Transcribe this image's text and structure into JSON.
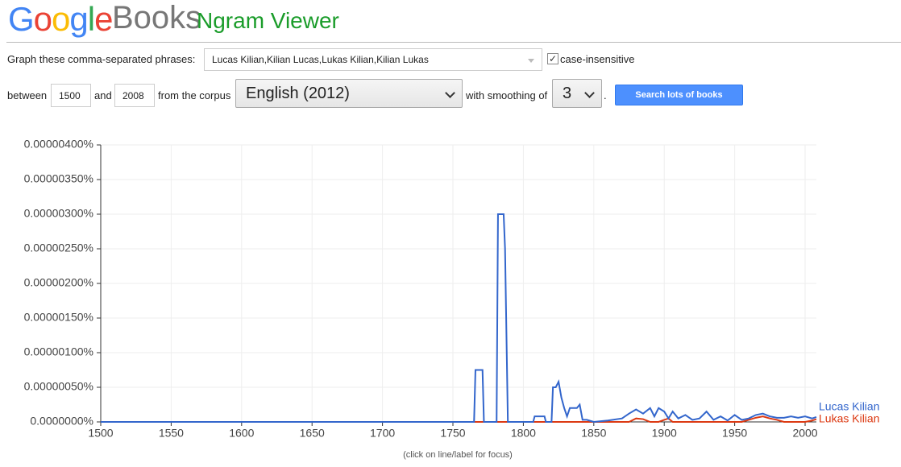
{
  "header": {
    "logo": "Google",
    "product": "Books",
    "title": "Ngram Viewer"
  },
  "form": {
    "phrases_label": "Graph these comma-separated phrases:",
    "phrases": "Lucas Kilian,Kilian Lucas,Lukas Kilian,Kilian Lukas",
    "case_insensitive_label": "case-insensitive",
    "between": "between",
    "start_year": "1500",
    "and": "and",
    "end_year": "2008",
    "corpus_label": "from the corpus",
    "corpus": "English (2012)",
    "smoothing_label": "with smoothing of",
    "smoothing": "3",
    "period": ".",
    "button": "Search lots of books"
  },
  "chart_data": {
    "type": "line",
    "note": "(click on line/label for focus)",
    "x": [
      1500,
      1765,
      1766,
      1771,
      1772,
      1781,
      1782,
      1786,
      1787,
      1789,
      1807,
      1808,
      1815,
      1816,
      1820,
      1821,
      1823,
      1825,
      1827,
      1829,
      1831,
      1833,
      1838,
      1840,
      1842,
      1845,
      1850,
      1860,
      1870,
      1875,
      1880,
      1885,
      1890,
      1893,
      1896,
      1900,
      1903,
      1906,
      1910,
      1915,
      1920,
      1925,
      1930,
      1935,
      1940,
      1945,
      1950,
      1955,
      1960,
      1965,
      1970,
      1975,
      1980,
      1985,
      1990,
      1995,
      2000,
      2005,
      2008
    ],
    "series": [
      {
        "name": "Lucas Kilian",
        "color": "#3366cc",
        "values": [
          0,
          0,
          7.5e-07,
          7.5e-07,
          0,
          0,
          3e-06,
          3e-06,
          2.5e-06,
          0,
          0,
          8e-08,
          8e-08,
          0,
          0,
          5e-07,
          5e-07,
          5.8e-07,
          3.5e-07,
          2e-07,
          8e-08,
          2e-07,
          2e-07,
          2.5e-07,
          3e-08,
          3e-08,
          0,
          2e-08,
          5e-08,
          1.2e-07,
          1.8e-07,
          1.2e-07,
          2e-07,
          8e-08,
          2e-07,
          1.5e-07,
          5e-08,
          1.5e-07,
          5e-08,
          1e-07,
          3e-08,
          5e-08,
          1.5e-07,
          3e-08,
          8e-08,
          2e-08,
          1e-07,
          3e-08,
          5e-08,
          1e-07,
          1.2e-07,
          8e-08,
          6e-08,
          6e-08,
          8e-08,
          6e-08,
          8e-08,
          5e-08,
          7e-08
        ]
      },
      {
        "name": "Lukas Kilian",
        "color": "#dc3912",
        "values": [
          0,
          0,
          0,
          0,
          0,
          0,
          0,
          0,
          0,
          0,
          0,
          0,
          0,
          0,
          0,
          0,
          0,
          0,
          0,
          0,
          0,
          0,
          0,
          0,
          0,
          0,
          0,
          0,
          0,
          0,
          5e-08,
          4e-08,
          0,
          0,
          0,
          3e-08,
          5e-08,
          0,
          0,
          0,
          0,
          0,
          0,
          0,
          0,
          0,
          0,
          0,
          3e-08,
          6e-08,
          8e-08,
          5e-08,
          3e-08,
          0,
          0,
          0,
          0,
          2e-08,
          4e-08
        ]
      }
    ],
    "xlim": [
      1500,
      2008
    ],
    "xticks": [
      1500,
      1550,
      1600,
      1650,
      1700,
      1750,
      1800,
      1850,
      1900,
      1950,
      2000
    ],
    "ylim": [
      0,
      4e-06
    ],
    "yticks": [
      {
        "value": 0,
        "label": "0.0000000%"
      },
      {
        "value": 5e-07,
        "label": "0.00000050%"
      },
      {
        "value": 1e-06,
        "label": "0.00000100%"
      },
      {
        "value": 1.5e-06,
        "label": "0.00000150%"
      },
      {
        "value": 2e-06,
        "label": "0.00000200%"
      },
      {
        "value": 2.5e-06,
        "label": "0.00000250%"
      },
      {
        "value": 3e-06,
        "label": "0.00000300%"
      },
      {
        "value": 3.5e-06,
        "label": "0.00000350%"
      },
      {
        "value": 4e-06,
        "label": "0.00000400%"
      }
    ],
    "grid": true
  }
}
